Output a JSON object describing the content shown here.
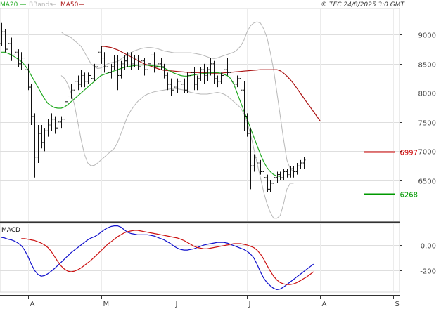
{
  "chart_data": [
    {
      "type": "line",
      "panel": "price",
      "legend": [
        {
          "name": "MA20",
          "color": "#22aa22"
        },
        {
          "name": "BBands",
          "color": "#b8b8b8"
        },
        {
          "name": "MA50",
          "color": "#aa1111"
        }
      ],
      "copyright": "© TEC 24/8/2025 3:0 GMT",
      "ylim": [
        5800,
        9450
      ],
      "y_ticks": [
        {
          "v": 9000,
          "label": "9000"
        },
        {
          "v": 8500,
          "label": "8500"
        },
        {
          "v": 8000,
          "label": "8000"
        },
        {
          "v": 7500,
          "label": "7500"
        },
        {
          "v": 7000,
          "label": "7000"
        },
        {
          "v": 6500,
          "label": "6500"
        }
      ],
      "x_ticks": [
        {
          "i": 8,
          "label": "A"
        },
        {
          "i": 30,
          "label": "M"
        },
        {
          "i": 52,
          "label": "J"
        },
        {
          "i": 74,
          "label": "J"
        },
        {
          "i": 96,
          "label": "A"
        },
        {
          "i": 118,
          "label": "S"
        }
      ],
      "n_slots": 120,
      "price_levels": [
        {
          "value": 6997,
          "label": "6997",
          "color": "#cc0000"
        },
        {
          "value": 6268,
          "label": "6268",
          "color": "#009900"
        }
      ],
      "ohlc": [
        [
          8850,
          9200,
          8800,
          9050
        ],
        [
          9050,
          9100,
          8700,
          8750
        ],
        [
          8750,
          8900,
          8600,
          8850
        ],
        [
          8850,
          8950,
          8550,
          8650
        ],
        [
          8650,
          8800,
          8500,
          8700
        ],
        [
          8700,
          8750,
          8450,
          8500
        ],
        [
          8500,
          8700,
          8400,
          8600
        ],
        [
          8600,
          8650,
          8300,
          8400
        ],
        [
          8400,
          8500,
          8050,
          8100
        ],
        [
          8100,
          8150,
          7450,
          7600
        ],
        [
          7600,
          7650,
          6550,
          6900
        ],
        [
          6900,
          7450,
          6800,
          7300
        ],
        [
          7300,
          7450,
          7050,
          7150
        ],
        [
          7150,
          7400,
          7000,
          7350
        ],
        [
          7350,
          7550,
          7250,
          7450
        ],
        [
          7450,
          7650,
          7350,
          7550
        ],
        [
          7550,
          7600,
          7300,
          7400
        ],
        [
          7400,
          7550,
          7350,
          7500
        ],
        [
          7500,
          7600,
          7400,
          7550
        ],
        [
          7550,
          7950,
          7500,
          7850
        ],
        [
          7850,
          8050,
          7800,
          7950
        ],
        [
          7950,
          8150,
          7900,
          8050
        ],
        [
          8050,
          8250,
          8000,
          8200
        ],
        [
          8200,
          8300,
          8050,
          8150
        ],
        [
          8150,
          8400,
          8100,
          8300
        ],
        [
          8300,
          8350,
          8100,
          8200
        ],
        [
          8200,
          8350,
          8150,
          8300
        ],
        [
          8300,
          8400,
          8150,
          8250
        ],
        [
          8250,
          8500,
          8200,
          8450
        ],
        [
          8450,
          8750,
          8400,
          8700
        ],
        [
          8700,
          8800,
          8500,
          8600
        ],
        [
          8600,
          8700,
          8350,
          8450
        ],
        [
          8450,
          8550,
          8250,
          8350
        ],
        [
          8350,
          8500,
          8250,
          8450
        ],
        [
          8450,
          8650,
          8400,
          8600
        ],
        [
          8600,
          8650,
          8050,
          8300
        ],
        [
          8300,
          8550,
          8250,
          8500
        ],
        [
          8500,
          8650,
          8400,
          8550
        ],
        [
          8550,
          8700,
          8450,
          8650
        ],
        [
          8650,
          8700,
          8400,
          8500
        ],
        [
          8500,
          8650,
          8450,
          8600
        ],
        [
          8600,
          8650,
          8400,
          8450
        ],
        [
          8450,
          8600,
          8250,
          8550
        ],
        [
          8550,
          8600,
          8300,
          8400
        ],
        [
          8400,
          8550,
          8350,
          8500
        ],
        [
          8500,
          8700,
          8450,
          8650
        ],
        [
          8650,
          8700,
          8350,
          8450
        ],
        [
          8450,
          8550,
          8350,
          8500
        ],
        [
          8500,
          8600,
          8400,
          8450
        ],
        [
          8450,
          8500,
          8250,
          8300
        ],
        [
          8300,
          8350,
          8050,
          8150
        ],
        [
          8150,
          8250,
          7950,
          8050
        ],
        [
          8050,
          8200,
          7850,
          8100
        ],
        [
          8100,
          8250,
          8000,
          8200
        ],
        [
          8200,
          8300,
          8050,
          8150
        ],
        [
          8150,
          8250,
          8000,
          8050
        ],
        [
          8050,
          8350,
          8000,
          8300
        ],
        [
          8300,
          8450,
          8200,
          8350
        ],
        [
          8350,
          8450,
          8050,
          8150
        ],
        [
          8150,
          8300,
          8050,
          8250
        ],
        [
          8250,
          8450,
          8200,
          8400
        ],
        [
          8400,
          8500,
          8150,
          8300
        ],
        [
          8300,
          8450,
          8200,
          8400
        ],
        [
          8400,
          8600,
          8300,
          8500
        ],
        [
          8500,
          8550,
          8150,
          8250
        ],
        [
          8250,
          8300,
          8100,
          8200
        ],
        [
          8200,
          8350,
          8150,
          8300
        ],
        [
          8300,
          8450,
          8200,
          8400
        ],
        [
          8400,
          8600,
          8300,
          8350
        ],
        [
          8350,
          8450,
          8100,
          8200
        ],
        [
          8200,
          8300,
          8000,
          8150
        ],
        [
          8150,
          8300,
          8100,
          8250
        ],
        [
          8250,
          8300,
          8000,
          8050
        ],
        [
          8050,
          8200,
          7350,
          7600
        ],
        [
          7600,
          7650,
          7250,
          7300
        ],
        [
          7300,
          7400,
          6350,
          6750
        ],
        [
          6750,
          6950,
          6650,
          6900
        ],
        [
          6900,
          6950,
          6650,
          6800
        ],
        [
          6800,
          6850,
          6600,
          6650
        ],
        [
          6650,
          6700,
          6450,
          6550
        ],
        [
          6550,
          6600,
          6300,
          6350
        ],
        [
          6350,
          6500,
          6300,
          6450
        ],
        [
          6450,
          6600,
          6400,
          6550
        ],
        [
          6550,
          6650,
          6450,
          6600
        ],
        [
          6600,
          6650,
          6500,
          6550
        ],
        [
          6550,
          6700,
          6500,
          6650
        ],
        [
          6650,
          6700,
          6550,
          6600
        ],
        [
          6600,
          6750,
          6550,
          6700
        ],
        [
          6700,
          6750,
          6550,
          6650
        ],
        [
          6650,
          6800,
          6600,
          6750
        ],
        [
          6750,
          6850,
          6700,
          6800
        ],
        [
          6800,
          6900,
          6700,
          6850
        ]
      ],
      "ma20": [
        8700,
        8700,
        8680,
        8650,
        8620,
        8580,
        8540,
        8480,
        8400,
        8300,
        8200,
        8100,
        8000,
        7900,
        7820,
        7780,
        7750,
        7740,
        7740,
        7760,
        7800,
        7850,
        7900,
        7950,
        8000,
        8050,
        8100,
        8150,
        8200,
        8250,
        8300,
        8320,
        8340,
        8360,
        8380,
        8400,
        8420,
        8440,
        8450,
        8460,
        8470,
        8475,
        8480,
        8480,
        8475,
        8470,
        8465,
        8460,
        8450,
        8430,
        8400,
        8370,
        8340,
        8320,
        8300,
        8290,
        8290,
        8300,
        8310,
        8320,
        8330,
        8335,
        8340,
        8345,
        8350,
        8350,
        8340,
        8320,
        8300,
        8250,
        8150,
        8000,
        7850,
        7700,
        7550,
        7400,
        7250,
        7100,
        6950,
        6820,
        6720,
        6650,
        6600,
        6575,
        6570
      ],
      "ma50": [
        8800,
        8800,
        8790,
        8780,
        8760,
        8740,
        8710,
        8680,
        8650,
        8620,
        8590,
        8560,
        8530,
        8500,
        8480,
        8460,
        8440,
        8420,
        8400,
        8390,
        8385,
        8380,
        8375,
        8370,
        8365,
        8360,
        8355,
        8350,
        8350,
        8350,
        8350,
        8350,
        8345,
        8340,
        8340,
        8340,
        8340,
        8345,
        8350,
        8355,
        8360,
        8365,
        8370,
        8375,
        8380,
        8385,
        8390,
        8395,
        8400,
        8400,
        8400,
        8400,
        8400,
        8400,
        8380,
        8340,
        8290,
        8230,
        8160,
        8080,
        8000,
        7920,
        7840,
        7760,
        7680,
        7600,
        7520
      ],
      "bb_upper": [
        9050,
        9000,
        8980,
        8950,
        8900,
        8850,
        8800,
        8700,
        8600,
        8500,
        8450,
        8420,
        8430,
        8460,
        8500,
        8520,
        8530,
        8540,
        8580,
        8620,
        8660,
        8690,
        8720,
        8740,
        8760,
        8770,
        8780,
        8780,
        8770,
        8760,
        8740,
        8720,
        8710,
        8700,
        8690,
        8690,
        8690,
        8690,
        8690,
        8690,
        8680,
        8670,
        8660,
        8640,
        8620,
        8600,
        8590,
        8600,
        8620,
        8640,
        8660,
        8680,
        8700,
        8740,
        8800,
        8900,
        9050,
        9150,
        9200,
        9220,
        9200,
        9100,
        8950,
        8700,
        8400,
        8000,
        7600,
        7200,
        6850,
        6700,
        6650
      ],
      "bb_lower": [
        8300,
        8250,
        8150,
        8000,
        7800,
        7500,
        7200,
        6950,
        6800,
        6750,
        6760,
        6800,
        6850,
        6900,
        6950,
        7000,
        7050,
        7150,
        7300,
        7450,
        7600,
        7700,
        7780,
        7850,
        7900,
        7950,
        7980,
        8000,
        8020,
        8030,
        8040,
        8050,
        8060,
        8070,
        8080,
        8070,
        8060,
        8050,
        8030,
        8010,
        8000,
        7990,
        7980,
        7980,
        7980,
        7990,
        8000,
        8010,
        8000,
        7980,
        7950,
        7900,
        7850,
        7800,
        7750,
        7650,
        7500,
        7300,
        7050,
        6800,
        6550,
        6300,
        6100,
        5950,
        5850,
        5850,
        5900,
        6100,
        6350,
        6450,
        6450
      ],
      "offsets": {
        "ma20": 0,
        "ma50": 30,
        "bb_upper": 18,
        "bb_lower": 18
      }
    },
    {
      "type": "line",
      "panel": "MACD",
      "title": "MACD",
      "ylim": [
        -370,
        170
      ],
      "y_ticks": [
        {
          "v": 0,
          "label": "0.00"
        },
        {
          "v": -200,
          "label": "-200"
        }
      ],
      "series": [
        {
          "color": "#1111cc",
          "values": [
            60,
            55,
            45,
            40,
            30,
            15,
            -5,
            -40,
            -90,
            -150,
            -200,
            -230,
            -245,
            -240,
            -225,
            -205,
            -185,
            -160,
            -135,
            -110,
            -85,
            -60,
            -40,
            -20,
            0,
            20,
            40,
            55,
            65,
            80,
            100,
            120,
            135,
            145,
            150,
            150,
            140,
            120,
            100,
            90,
            85,
            80,
            80,
            80,
            80,
            75,
            70,
            60,
            50,
            40,
            25,
            10,
            -10,
            -25,
            -35,
            -40,
            -40,
            -35,
            -30,
            -20,
            -10,
            0,
            5,
            10,
            15,
            20,
            20,
            20,
            15,
            5,
            -5,
            -15,
            -25,
            -35,
            -50,
            -70,
            -100,
            -150,
            -210,
            -260,
            -295,
            -320,
            -340,
            -350,
            -345,
            -330,
            -310,
            -290,
            -270,
            -250,
            -230,
            -210,
            -190,
            -170,
            -150
          ]
        },
        {
          "color": "#cc1111",
          "values": [
            50,
            50,
            45,
            40,
            35,
            25,
            15,
            0,
            -20,
            -50,
            -90,
            -130,
            -165,
            -190,
            -205,
            -210,
            -205,
            -195,
            -180,
            -160,
            -140,
            -120,
            -95,
            -70,
            -45,
            -20,
            5,
            25,
            45,
            65,
            80,
            95,
            105,
            110,
            115,
            115,
            110,
            105,
            100,
            95,
            90,
            85,
            80,
            75,
            70,
            65,
            60,
            55,
            45,
            35,
            20,
            5,
            -10,
            -20,
            -25,
            -30,
            -30,
            -25,
            -20,
            -15,
            -10,
            -5,
            0,
            5,
            10,
            10,
            10,
            5,
            0,
            -10,
            -20,
            -40,
            -70,
            -110,
            -160,
            -205,
            -245,
            -275,
            -295,
            -305,
            -310,
            -310,
            -305,
            -295,
            -280,
            -265,
            -250,
            -230,
            -210
          ],
          "offset": 6
        }
      ]
    }
  ]
}
